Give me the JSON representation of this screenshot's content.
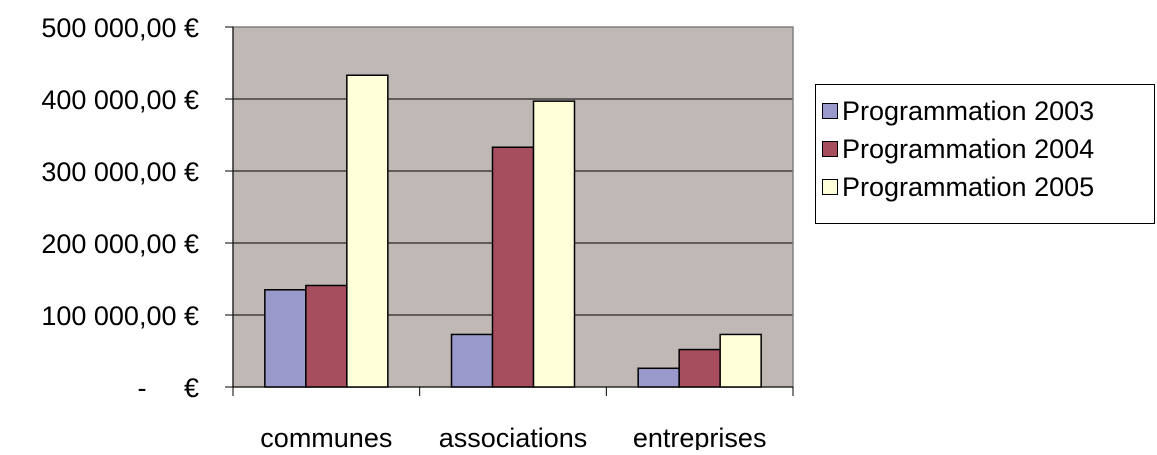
{
  "chart_data": {
    "type": "bar",
    "title": "",
    "xlabel": "",
    "ylabel": "",
    "categories": [
      "communes",
      "associations",
      "entreprises"
    ],
    "series": [
      {
        "name": "Programmation 2003",
        "color": "#9999cc",
        "values": [
          135000,
          73000,
          26000
        ]
      },
      {
        "name": "Programmation 2004",
        "color": "#a64d5e",
        "values": [
          141000,
          333000,
          52000
        ]
      },
      {
        "name": "Programmation 2005",
        "color": "#ffffd9",
        "values": [
          433000,
          397000,
          73000
        ]
      }
    ],
    "ylim": [
      0,
      500000
    ],
    "yticks": [
      0,
      100000,
      200000,
      300000,
      400000,
      500000
    ],
    "ytick_labels": [
      "-     €",
      "100 000,00 €",
      "200 000,00 €",
      "300 000,00 €",
      "400 000,00 €",
      "500 000,00 €"
    ],
    "grid": true,
    "plot_background": "#c0b8b4",
    "legend_position": "right"
  }
}
